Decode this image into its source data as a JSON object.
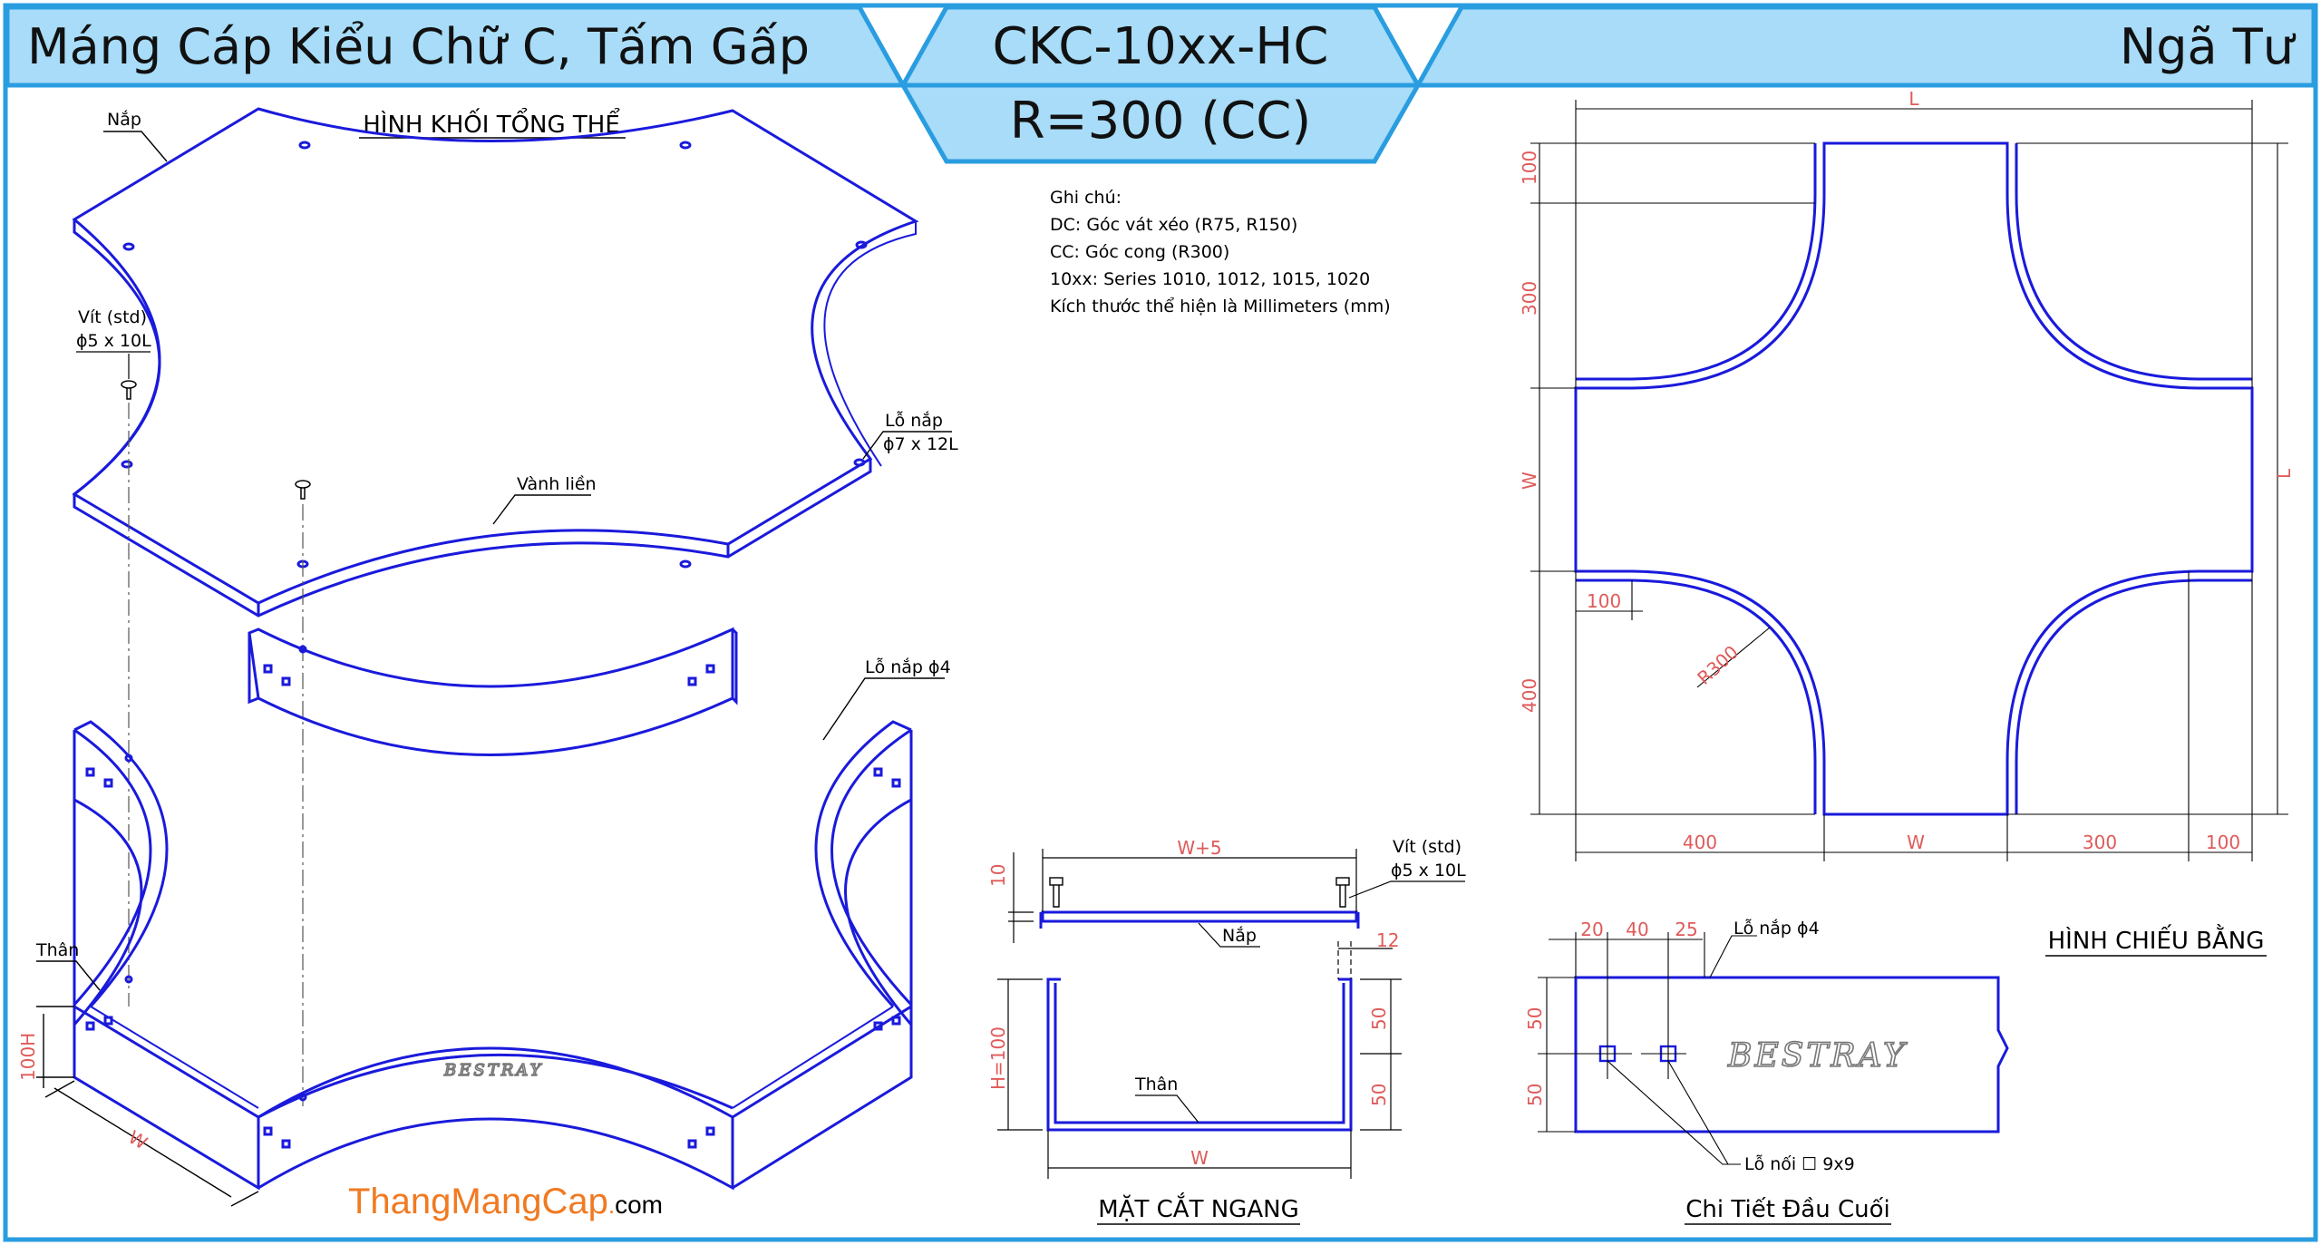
{
  "header": {
    "left_title": "Máng Cáp Kiểu Chữ C, Tấm Gấp",
    "code": "CKC-10xx-HC",
    "radius": "R=300 (CC)",
    "right_title": "Ngã Tư"
  },
  "colors": {
    "line": "#1a1adc",
    "dimension": "#e05a5a",
    "header_fill": "#a8dcf8",
    "frame": "#2a9de0",
    "brand_orange": "#f07a22"
  },
  "iso": {
    "title": "HÌNH KHỐI TỔNG THỂ",
    "cover_label": "Nắp",
    "screw_label_1": "Vít (std)",
    "screw_label_2": "ϕ5 x 10L",
    "cover_hole_1": "Lỗ nắp",
    "cover_hole_2": "ϕ7 x 12L",
    "rim_label": "Vành liền",
    "body_hole": "Lỗ nắp ϕ4",
    "body_label": "Thân",
    "dim_h": "100H",
    "dim_w": "W",
    "logo": "BESTRAY"
  },
  "notes": {
    "heading": "Ghi chú:",
    "lines": [
      "DC: Góc vát xéo (R75, R150)",
      "CC: Góc cong (R300)",
      "10xx: Series 1010, 1012, 1015, 1020",
      "Kích thước thể hiện là Millimeters (mm)"
    ]
  },
  "section": {
    "title": "MẶT CẮT NGANG",
    "dim_top": "W+5",
    "dim_bottom": "W",
    "dim_lip": "10",
    "dim_h": "H=100",
    "dim_12": "12",
    "dim_50a": "50",
    "dim_50b": "50",
    "screw_1": "Vít (std)",
    "screw_2": "ϕ5 x 10L",
    "cover": "Nắp",
    "body": "Thân"
  },
  "plan": {
    "title": "HÌNH CHIẾU BẰNG",
    "dim_L_top": "L",
    "dim_L_right": "L",
    "dim_100_left": "100",
    "dim_300_left": "300",
    "dim_W_left": "W",
    "dim_400_left": "400",
    "dim_100_inner": "100",
    "dim_R": "R300",
    "dim_400_bottom": "400",
    "dim_W_bottom": "W",
    "dim_300_bottom": "300",
    "dim_100_bottom": "100"
  },
  "detail": {
    "title": "Chi Tiết Đầu Cuối",
    "dim_20": "20",
    "dim_40": "40",
    "dim_25": "25",
    "hole_label": "Lỗ nắp ϕ4",
    "dim_50a": "50",
    "dim_50b": "50",
    "joint_label": "Lỗ nối ☐ 9x9",
    "logo": "BESTRAY"
  },
  "brand": {
    "name": "ThangMangCap",
    "dot": ".",
    "tld": "com"
  }
}
